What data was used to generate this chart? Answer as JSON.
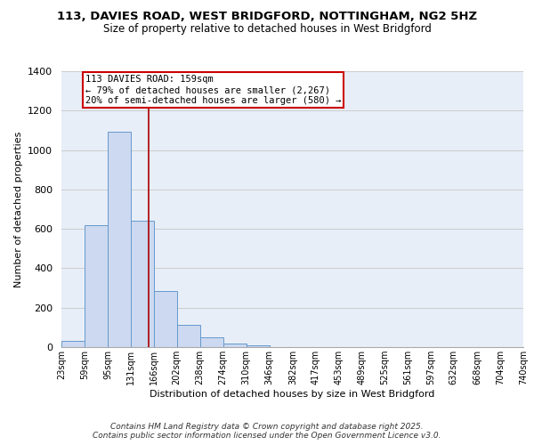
{
  "title_line1": "113, DAVIES ROAD, WEST BRIDGFORD, NOTTINGHAM, NG2 5HZ",
  "title_line2": "Size of property relative to detached houses in West Bridgford",
  "xlabel": "Distribution of detached houses by size in West Bridgford",
  "ylabel": "Number of detached properties",
  "bin_edges": [
    23,
    59,
    95,
    131,
    166,
    202,
    238,
    274,
    310,
    346,
    382,
    417,
    453,
    489,
    525,
    561,
    597,
    632,
    668,
    704,
    740
  ],
  "bin_labels": [
    "23sqm",
    "59sqm",
    "95sqm",
    "131sqm",
    "166sqm",
    "202sqm",
    "238sqm",
    "274sqm",
    "310sqm",
    "346sqm",
    "382sqm",
    "417sqm",
    "453sqm",
    "489sqm",
    "525sqm",
    "561sqm",
    "597sqm",
    "632sqm",
    "668sqm",
    "704sqm",
    "740sqm"
  ],
  "counts": [
    30,
    620,
    1095,
    640,
    285,
    115,
    50,
    20,
    10,
    0,
    0,
    0,
    0,
    0,
    0,
    0,
    0,
    0,
    0,
    0
  ],
  "bar_facecolor": "#ccd9f0",
  "bar_edgecolor": "#6699cc",
  "grid_color": "#cccccc",
  "bg_color": "#e8eef8",
  "property_line_x": 159,
  "property_line_color": "#aa0000",
  "annotation_box_text": "113 DAVIES ROAD: 159sqm\n← 79% of detached houses are smaller (2,267)\n20% of semi-detached houses are larger (580) →",
  "annotation_box_facecolor": "#ffffff",
  "annotation_box_edgecolor": "#cc0000",
  "ylim": [
    0,
    1400
  ],
  "yticks": [
    0,
    200,
    400,
    600,
    800,
    1000,
    1200,
    1400
  ],
  "footer_line1": "Contains HM Land Registry data © Crown copyright and database right 2025.",
  "footer_line2": "Contains public sector information licensed under the Open Government Licence v3.0.",
  "title_fontsize": 9.5,
  "subtitle_fontsize": 8.5,
  "axis_label_fontsize": 8,
  "tick_fontsize": 7,
  "annot_fontsize": 7.5,
  "footer_fontsize": 6.5
}
